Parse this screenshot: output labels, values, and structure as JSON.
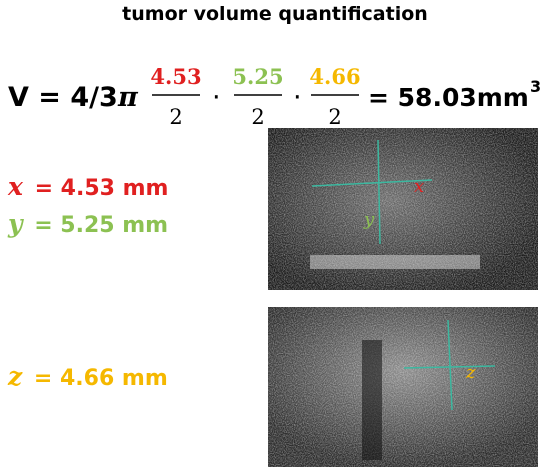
{
  "title": "tumor volume quantification",
  "formula": {
    "lhs": "V = 4/3",
    "pi": "π",
    "fractions": [
      {
        "numerator": "4.53",
        "denominator": "2"
      },
      {
        "numerator": "5.25",
        "denominator": "2"
      },
      {
        "numerator": "4.66",
        "denominator": "2"
      }
    ],
    "dot": "·",
    "result": "= 58.03mm",
    "exponent": "3"
  },
  "measurements": [
    {
      "symbol": "x",
      "text": "= 4.53 mm"
    },
    {
      "symbol": "y",
      "text": "= 5.25 mm"
    },
    {
      "symbol": "z",
      "text": "= 4.66 mm"
    }
  ],
  "images": [
    {
      "labels": [
        "x",
        "y"
      ]
    },
    {
      "labels": [
        "z"
      ]
    }
  ]
}
